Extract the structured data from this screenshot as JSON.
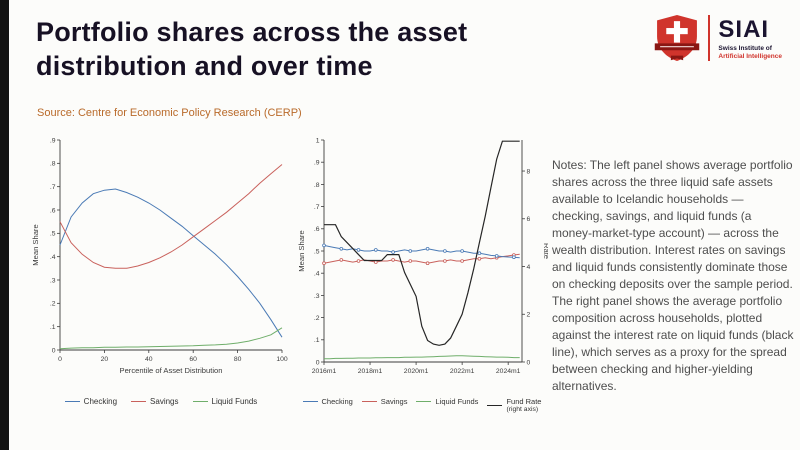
{
  "page": {
    "title": "Portfolio shares across the asset distribution and over time",
    "source": "Source: Centre for Economic Policy Research (CERP)",
    "notes": "Notes: The left panel shows average portfolio shares across the three liquid safe assets available to Icelandic households — checking, savings, and liquid funds (a money-market-type account) — across the wealth distribution. Interest rates on savings and liquid funds consistently dominate those on checking deposits over the sample period. The right panel shows the average portfolio composition across households, plotted against the interest rate on liquid funds (black line), which serves as a proxy for the spread between checking and higher-yielding alternatives."
  },
  "logo": {
    "name": "SIAI",
    "line1": "Swiss Institute of",
    "line2": "Artificial Intelligence"
  },
  "colors": {
    "accent_red": "#d0342c",
    "accent_dark": "#8a1713",
    "checking": "#4a7ab5",
    "savings": "#c9615c",
    "liquid_funds": "#6fae6a",
    "fund_rate": "#262626",
    "title_text": "#171124",
    "source_text": "#b96a2a"
  },
  "chart_data": [
    {
      "type": "line",
      "title": "",
      "xlabel": "Percentile of Asset Distribution",
      "ylabel": "Mean Share",
      "xlim": [
        0,
        100
      ],
      "ylim": [
        0,
        0.9
      ],
      "xticks": [
        0,
        20,
        40,
        60,
        80,
        100
      ],
      "xtick_labels": [
        "0",
        "20",
        "40",
        "60",
        "80",
        "100"
      ],
      "yticks": [
        0,
        0.1,
        0.2,
        0.3,
        0.4,
        0.5,
        0.6,
        0.7,
        0.8,
        0.9
      ],
      "ytick_labels": [
        "0",
        ".1",
        ".2",
        ".3",
        ".4",
        ".5",
        ".6",
        ".7",
        ".8",
        ".9"
      ],
      "grid": false,
      "legend_position": "bottom",
      "series": [
        {
          "name": "Checking",
          "color": "#4a7ab5",
          "x0": 0,
          "dx": 5,
          "values": [
            0.45,
            0.57,
            0.63,
            0.67,
            0.685,
            0.69,
            0.675,
            0.655,
            0.63,
            0.6,
            0.565,
            0.53,
            0.49,
            0.45,
            0.41,
            0.365,
            0.315,
            0.26,
            0.2,
            0.13,
            0.055
          ]
        },
        {
          "name": "Savings",
          "color": "#c9615c",
          "x0": 0,
          "dx": 5,
          "values": [
            0.55,
            0.46,
            0.41,
            0.375,
            0.355,
            0.35,
            0.35,
            0.36,
            0.375,
            0.395,
            0.42,
            0.45,
            0.485,
            0.52,
            0.555,
            0.59,
            0.63,
            0.67,
            0.715,
            0.755,
            0.795
          ]
        },
        {
          "name": "Liquid Funds",
          "color": "#6fae6a",
          "x0": 0,
          "dx": 5,
          "values": [
            0.005,
            0.008,
            0.01,
            0.01,
            0.012,
            0.012,
            0.013,
            0.013,
            0.014,
            0.015,
            0.016,
            0.017,
            0.018,
            0.02,
            0.022,
            0.025,
            0.03,
            0.038,
            0.05,
            0.065,
            0.095
          ]
        }
      ],
      "legend": [
        {
          "label": "Checking",
          "color": "#4a7ab5"
        },
        {
          "label": "Savings",
          "color": "#c9615c"
        },
        {
          "label": "Liquid Funds",
          "color": "#6fae6a"
        }
      ]
    },
    {
      "type": "line",
      "title": "",
      "xlabel": "",
      "ylabel": "Mean Share",
      "ylabel2": "Rate",
      "xlim": [
        2016,
        2024.6
      ],
      "ylim": [
        0,
        1
      ],
      "ylim2": [
        0,
        9.3
      ],
      "xticks": [
        2016,
        2018,
        2020,
        2022,
        2024
      ],
      "xtick_labels": [
        "2016m1",
        "2018m1",
        "2020m1",
        "2022m1",
        "2024m1"
      ],
      "yticks": [
        0,
        0.1,
        0.2,
        0.3,
        0.4,
        0.5,
        0.6,
        0.7,
        0.8,
        0.9,
        1
      ],
      "ytick_labels": [
        "0",
        ".1",
        ".2",
        ".3",
        ".4",
        ".5",
        ".6",
        ".7",
        ".8",
        ".9",
        "1"
      ],
      "yticks2": [
        0,
        2,
        4,
        6,
        8
      ],
      "ytick2_labels": [
        "0",
        "2",
        "4",
        "6",
        "8"
      ],
      "grid": false,
      "legend_position": "bottom",
      "series": [
        {
          "name": "Liquid Funds",
          "color": "#6fae6a",
          "x0": 2016,
          "dx": 0.25,
          "values": [
            0.015,
            0.015,
            0.016,
            0.016,
            0.017,
            0.017,
            0.018,
            0.018,
            0.018,
            0.019,
            0.019,
            0.02,
            0.02,
            0.02,
            0.021,
            0.021,
            0.022,
            0.022,
            0.023,
            0.024,
            0.025,
            0.026,
            0.027,
            0.028,
            0.028,
            0.027,
            0.026,
            0.025,
            0.024,
            0.023,
            0.022,
            0.022,
            0.021,
            0.02,
            0.02
          ]
        },
        {
          "name": "Savings",
          "color": "#c9615c",
          "marker": true,
          "marker_every": 3,
          "x0": 2016,
          "dx": 0.25,
          "values": [
            0.445,
            0.45,
            0.455,
            0.46,
            0.455,
            0.45,
            0.455,
            0.46,
            0.455,
            0.45,
            0.455,
            0.455,
            0.46,
            0.455,
            0.45,
            0.455,
            0.455,
            0.45,
            0.445,
            0.45,
            0.455,
            0.455,
            0.46,
            0.455,
            0.455,
            0.46,
            0.465,
            0.465,
            0.47,
            0.465,
            0.47,
            0.475,
            0.478,
            0.482,
            0.485
          ]
        },
        {
          "name": "Checking",
          "color": "#4a7ab5",
          "marker": true,
          "marker_every": 3,
          "x0": 2016,
          "dx": 0.25,
          "values": [
            0.525,
            0.52,
            0.515,
            0.51,
            0.505,
            0.51,
            0.505,
            0.5,
            0.5,
            0.505,
            0.5,
            0.5,
            0.495,
            0.5,
            0.505,
            0.5,
            0.5,
            0.505,
            0.51,
            0.505,
            0.5,
            0.5,
            0.495,
            0.5,
            0.5,
            0.495,
            0.49,
            0.49,
            0.485,
            0.48,
            0.478,
            0.475,
            0.473,
            0.472,
            0.47
          ]
        },
        {
          "name": "Fund Rate",
          "color": "#262626",
          "axis": "right",
          "width": 1.2,
          "x0": 2016,
          "dx": 0.25,
          "values": [
            5.75,
            5.75,
            5.75,
            5.25,
            5.0,
            4.75,
            4.5,
            4.25,
            4.25,
            4.25,
            4.25,
            4.5,
            4.5,
            4.5,
            3.75,
            3.25,
            2.75,
            1.5,
            0.9,
            0.75,
            0.7,
            0.75,
            1.0,
            1.5,
            2.0,
            2.9,
            3.9,
            5.0,
            6.1,
            7.3,
            8.5,
            9.25,
            9.25,
            9.25,
            9.25
          ]
        }
      ],
      "legend": [
        {
          "label": "Checking",
          "color": "#4a7ab5"
        },
        {
          "label": "Savings",
          "color": "#c9615c"
        },
        {
          "label": "Liquid Funds",
          "color": "#6fae6a"
        },
        {
          "label": "Fund Rate",
          "sub": "(right axis)",
          "color": "#262626"
        }
      ]
    }
  ]
}
